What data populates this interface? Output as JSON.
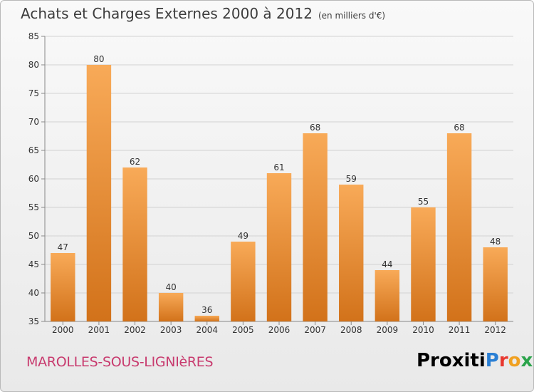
{
  "title": "Achats et Charges Externes 2000 à 2012",
  "subtitle": "(en milliers d'€)",
  "commune": "MAROLLES-SOUS-LIGNIèRES",
  "logo": {
    "text": "Proxiti",
    "letter_colors": [
      "#2a7fd4",
      "#e8372e",
      "#f0a020",
      "#2aa34a",
      "#9b4bc0",
      "#f0a020",
      "#2a7fd4"
    ]
  },
  "colors": {
    "bar_light": "#f8aa58",
    "bar_dark": "#d2721a",
    "grid": "#d2d2d2",
    "axis": "#888888",
    "text": "#333333"
  },
  "chart_data": {
    "type": "bar",
    "title": "Achats et Charges Externes 2000 à 2012",
    "subtitle": "(en milliers d'€)",
    "categories": [
      "2000",
      "2001",
      "2002",
      "2003",
      "2004",
      "2005",
      "2006",
      "2007",
      "2008",
      "2009",
      "2010",
      "2011",
      "2012"
    ],
    "values": [
      47,
      80,
      62,
      40,
      36,
      49,
      61,
      68,
      59,
      44,
      55,
      68,
      48
    ],
    "ylim": [
      35,
      85
    ],
    "yticks": [
      35,
      40,
      45,
      50,
      55,
      60,
      65,
      70,
      75,
      80,
      85
    ],
    "grid": true,
    "xlabel": "",
    "ylabel": ""
  }
}
